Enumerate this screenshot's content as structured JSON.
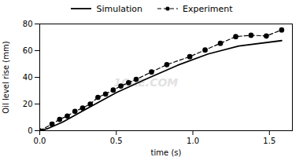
{
  "chart_data": {
    "type": "line",
    "xlabel": "time (s)",
    "ylabel": "Oil level rise (mm)",
    "xlim": [
      0,
      1.65
    ],
    "ylim": [
      0,
      80
    ],
    "xticks": [
      {
        "value": 0,
        "label": "0.0"
      },
      0.5,
      {
        "value": 1,
        "label": "1.0"
      },
      1.5
    ],
    "yticks": [
      0,
      20,
      40,
      60,
      80
    ],
    "legend": "top",
    "annotations": [
      {
        "text": "1CAE.COM"
      }
    ],
    "series": [
      {
        "name": "Simulation",
        "color": "#000000",
        "line_style": "solid",
        "x": [
          0.0,
          0.05,
          0.15,
          0.3,
          0.5,
          0.7,
          0.9,
          1.1,
          1.3,
          1.58
        ],
        "values": [
          0.0,
          1.5,
          6.5,
          16.0,
          28.5,
          39.0,
          49.0,
          57.5,
          63.5,
          67.5
        ]
      },
      {
        "name": "Experiment",
        "color": "#000000",
        "line_style": "dashed",
        "marker": "circle",
        "x": [
          0.0,
          0.08,
          0.13,
          0.18,
          0.23,
          0.28,
          0.33,
          0.38,
          0.43,
          0.48,
          0.53,
          0.58,
          0.63,
          0.73,
          0.83,
          0.98,
          1.08,
          1.18,
          1.28,
          1.38,
          1.48,
          1.58
        ],
        "values": [
          0.0,
          5.0,
          8.5,
          11.0,
          14.5,
          17.0,
          20.0,
          25.0,
          27.5,
          30.5,
          33.5,
          36.0,
          38.5,
          44.0,
          49.5,
          55.5,
          60.5,
          65.5,
          70.5,
          71.5,
          71.0,
          75.5
        ]
      }
    ]
  }
}
